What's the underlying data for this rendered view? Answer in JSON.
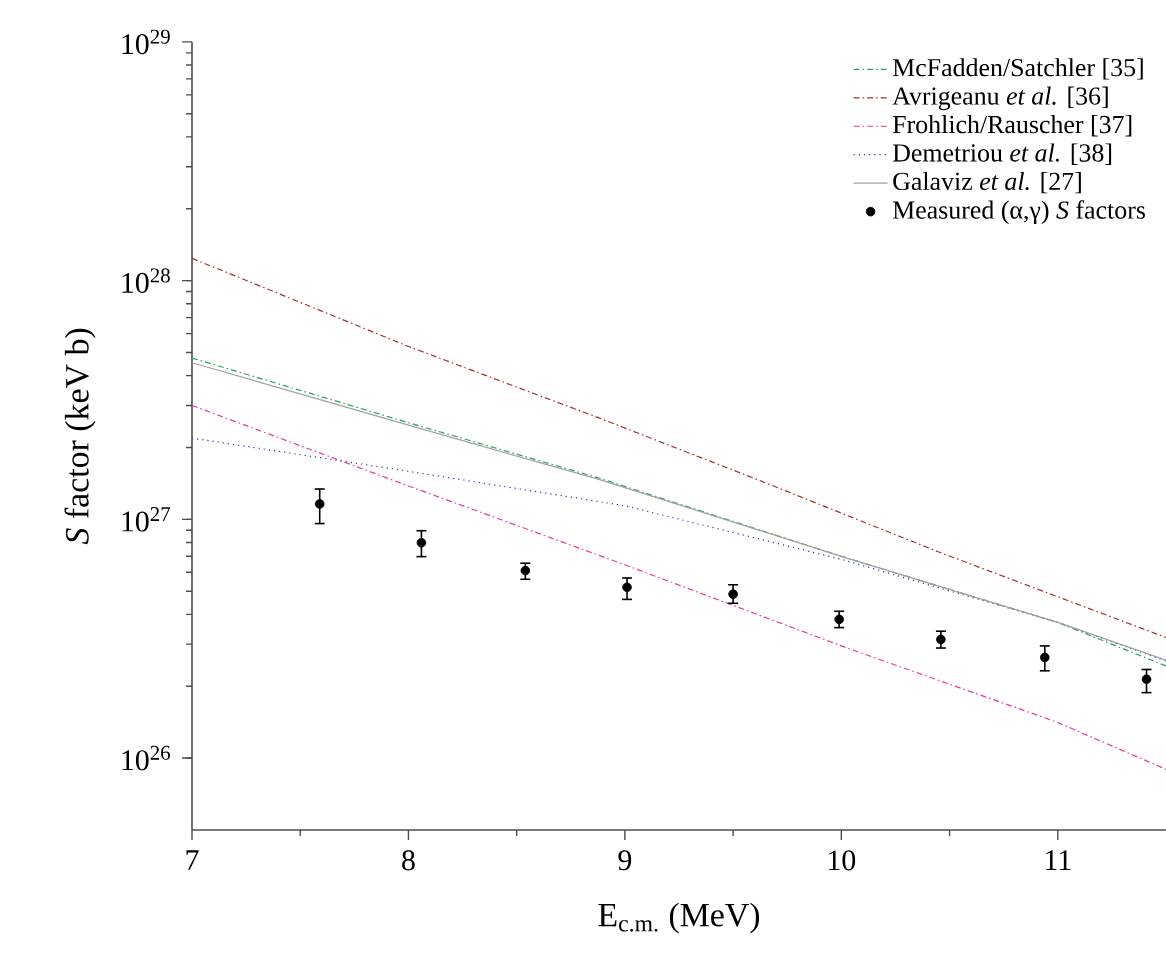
{
  "chart_data": {
    "type": "line",
    "xlabel": "E$_{c.m.}$ (MeV)",
    "ylabel": "*S* factor (keV b)",
    "xlim": [
      7,
      11.5
    ],
    "xticks": [
      7,
      8,
      9,
      10,
      11
    ],
    "ylim": [
      5e+25,
      1e+29
    ],
    "yticks": [
      {
        "value": 1e+26,
        "label": "10$^{26}$"
      },
      {
        "value": 1e+27,
        "label": "10$^{27}$"
      },
      {
        "value": 1e+28,
        "label": "10$^{28}$"
      },
      {
        "value": 1e+29,
        "label": "10$^{29}$"
      }
    ],
    "log": "y",
    "grid": false,
    "legend": "top right",
    "series": [
      {
        "name": "McFadden/Satchler [35]",
        "color": "#2ca05a",
        "line_style": "dashed",
        "marker": "none",
        "x": [
          7,
          8,
          8.88,
          10,
          11,
          11.5
        ],
        "values": [
          4.74e+27,
          2.54e+27,
          1.49e+27,
          7e+26,
          3.7e+26,
          2.43e+26
        ]
      },
      {
        "name": "Avrigeanu *et al.* [36]",
        "color": "#a0322d",
        "line_style": "dashed",
        "marker": "none",
        "x": [
          7,
          8,
          8.88,
          9.61,
          10.45,
          11.5
        ],
        "values": [
          1.24e+28,
          5.3e+27,
          2.66e+27,
          1.47e+27,
          7.3e+26,
          3.2e+26
        ]
      },
      {
        "name": "Frohlich/Rauscher [37]",
        "color": "#e8379b",
        "line_style": "dashed",
        "marker": "none",
        "x": [
          7,
          8,
          9,
          10,
          11,
          11.5
        ],
        "values": [
          3e+27,
          1.38e+27,
          6.45e+26,
          2.95e+26,
          1.41e+26,
          8.97e+25
        ]
      },
      {
        "name": "Demetriou *et al.* [38]",
        "color": "#3232a0",
        "line_style": "dotted",
        "marker": "none",
        "x": [
          7,
          8,
          9,
          10,
          11,
          11.5
        ],
        "values": [
          2.19e+27,
          1.59e+27,
          1.14e+27,
          6.8e+26,
          3.7e+26,
          2.55e+26
        ]
      },
      {
        "name": "Galaviz *et al.* [27]",
        "color": "#a0a0a0",
        "line_style": "solid",
        "marker": "none",
        "x": [
          7,
          8,
          8.88,
          10,
          11,
          11.5
        ],
        "values": [
          4.53e+27,
          2.48e+27,
          1.47e+27,
          7e+26,
          3.7e+26,
          2.57e+26
        ]
      },
      {
        "name": "Measured (α,γ) *S* factors",
        "type": "scatter",
        "color": "#000000",
        "marker": "circle",
        "x": [
          7.59,
          8.06,
          8.54,
          9.01,
          9.5,
          9.99,
          10.46,
          10.94,
          11.41
        ],
        "values": [
          1.16e+27,
          7.98e+26,
          6.1e+26,
          5.19e+26,
          4.86e+26,
          3.81e+26,
          3.14e+26,
          2.64e+26,
          2.14e+26
        ],
        "errors": [
          [
            9.6e+26,
            1.34e+27
          ],
          [
            6.98e+26,
            8.96e+26
          ],
          [
            5.61e+26,
            6.55e+26
          ],
          [
            4.62e+26,
            5.68e+26
          ],
          [
            4.45e+26,
            5.32e+26
          ],
          [
            3.52e+26,
            4.12e+26
          ],
          [
            2.89e+26,
            3.4e+26
          ],
          [
            2.32e+26,
            2.95e+26
          ],
          [
            1.88e+26,
            2.35e+26
          ]
        ]
      }
    ]
  }
}
